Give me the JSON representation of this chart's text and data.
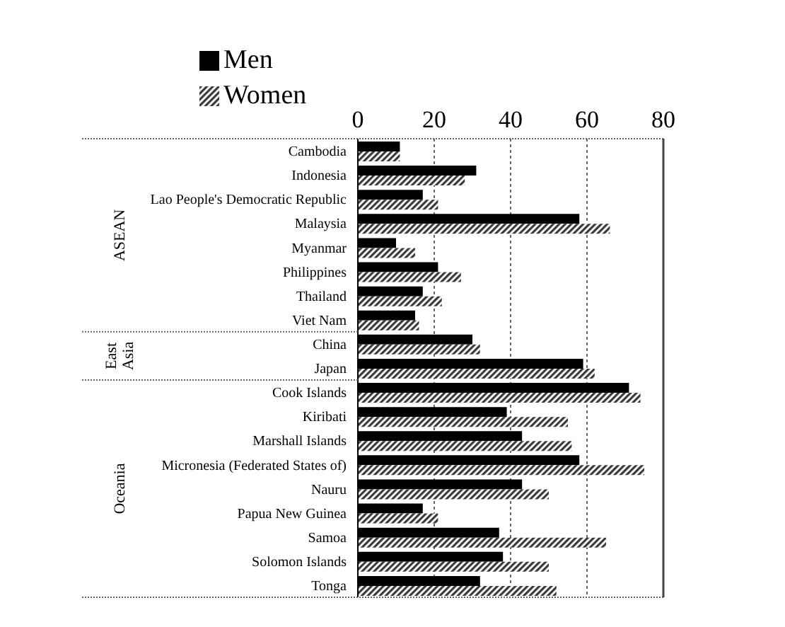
{
  "chart_data": {
    "type": "bar",
    "orientation": "horizontal",
    "categories": [
      "Cambodia",
      "Indonesia",
      "Lao People's Democratic Republic",
      "Malaysia",
      "Myanmar",
      "Philippines",
      "Thailand",
      "Viet Nam",
      "China",
      "Japan",
      "Cook Islands",
      "Kiribati",
      "Marshall Islands",
      "Micronesia (Federated States of)",
      "Nauru",
      "Papua New Guinea",
      "Samoa",
      "Solomon Islands",
      "Tonga"
    ],
    "series": [
      {
        "name": "Men",
        "color": "#000000",
        "values": [
          11,
          31,
          17,
          58,
          10,
          21,
          17,
          15,
          30,
          59,
          71,
          39,
          43,
          58,
          43,
          17,
          37,
          38,
          32
        ]
      },
      {
        "name": "Women",
        "color": "#3a3a3a",
        "values": [
          11,
          28,
          21,
          66,
          15,
          27,
          22,
          16,
          32,
          62,
          74,
          55,
          56,
          75,
          50,
          21,
          65,
          50,
          52
        ]
      }
    ],
    "xlim": [
      0,
      80
    ],
    "xticks": [
      0,
      20,
      40,
      60,
      80
    ],
    "grid": "x",
    "legend": "top left",
    "annotations": [
      "ASEAN",
      "East Asia",
      "Oceania"
    ]
  }
}
